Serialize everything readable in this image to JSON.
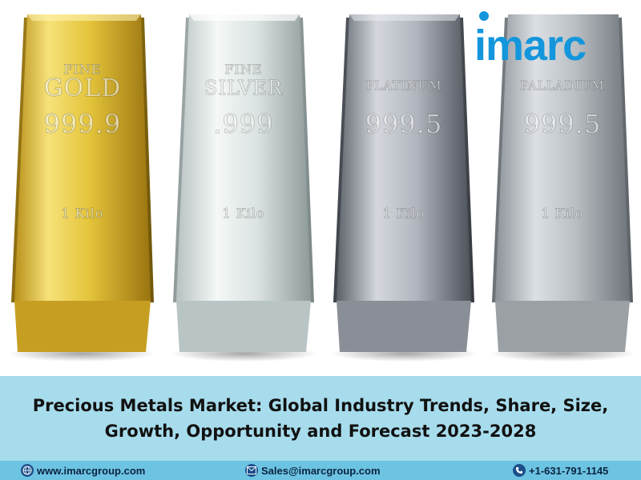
{
  "bars": [
    {
      "line1": "FINE",
      "line2": "GOLD",
      "purity": "999.9",
      "weight": "1 Kilo",
      "color": "#e8c84a"
    },
    {
      "line1": "FINE",
      "line2": "SILVER",
      "purity": ".999",
      "weight": "1 Kilo",
      "color": "#dfe6e8"
    },
    {
      "line1": "",
      "line2": "PLATINUM",
      "purity": "999.5",
      "weight": "1 Kilo",
      "color": "#b8bcc4"
    },
    {
      "line1": "",
      "line2": "PALLADIUM",
      "purity": "999.5",
      "weight": "1 Kilo",
      "color": "#b6bbc0"
    }
  ],
  "logo": {
    "text": "imarc",
    "color": "#1496dc"
  },
  "title": "Precious Metals Market: Global Industry Trends, Share, Size, Growth, Opportunity and Forecast 2023-2028",
  "footer": {
    "website": "www.imarcgroup.com",
    "email": "Sales@imarcgroup.com",
    "phone": "+1-631-791-1145"
  },
  "colors": {
    "title_band": "#a7dcec",
    "footer_band": "#6dc3e2",
    "brand_blue": "#1496dc"
  },
  "icons": [
    "globe-icon",
    "mail-icon",
    "phone-icon"
  ]
}
